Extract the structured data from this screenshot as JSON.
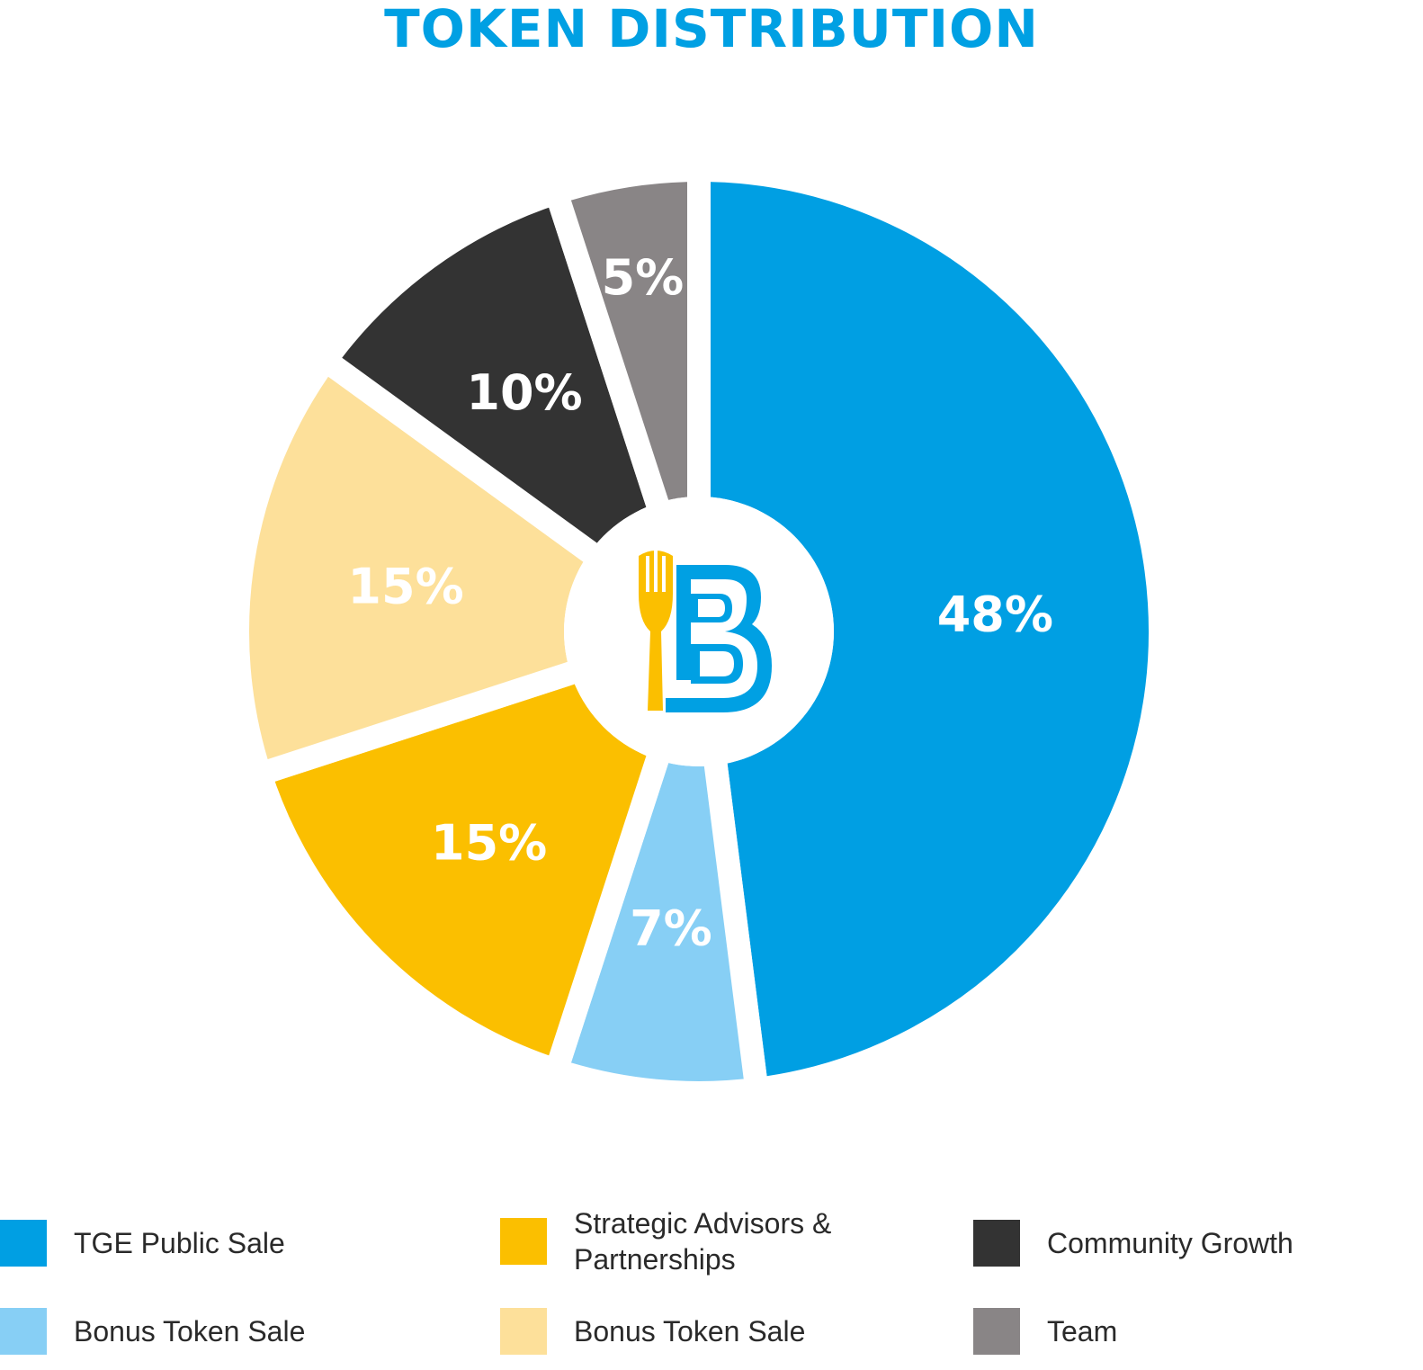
{
  "title": "TOKEN DISTRIBUTION",
  "chart_data": {
    "type": "pie",
    "title": "TOKEN DISTRIBUTION",
    "slices": [
      {
        "label": "TGE Public Sale",
        "value": 48,
        "display": "48%",
        "color": "#009fe3"
      },
      {
        "label": "Bonus Token Sale",
        "value": 7,
        "display": "7%",
        "color": "#87cff5"
      },
      {
        "label": "Strategic Advisors & Partnerships",
        "value": 15,
        "display": "15%",
        "color": "#fbbf00"
      },
      {
        "label": "Bonus Token Sale",
        "value": 15,
        "display": "15%",
        "color": "#fde09a"
      },
      {
        "label": "Community Growth",
        "value": 10,
        "display": "10%",
        "color": "#333333"
      },
      {
        "label": "Team",
        "value": 5,
        "display": "5%",
        "color": "#898586"
      }
    ],
    "legend_position": "bottom",
    "center_logo": "fork-b-logo"
  },
  "legend": [
    {
      "label": "TGE Public Sale",
      "color": "#009fe3"
    },
    {
      "label": "Strategic Advisors & Partnerships",
      "color": "#fbbf00"
    },
    {
      "label": "Community Growth",
      "color": "#333333"
    },
    {
      "label": "Bonus Token Sale",
      "color": "#87cff5"
    },
    {
      "label": "Bonus Token Sale",
      "color": "#fde09a"
    },
    {
      "label": "Team",
      "color": "#898586"
    }
  ]
}
